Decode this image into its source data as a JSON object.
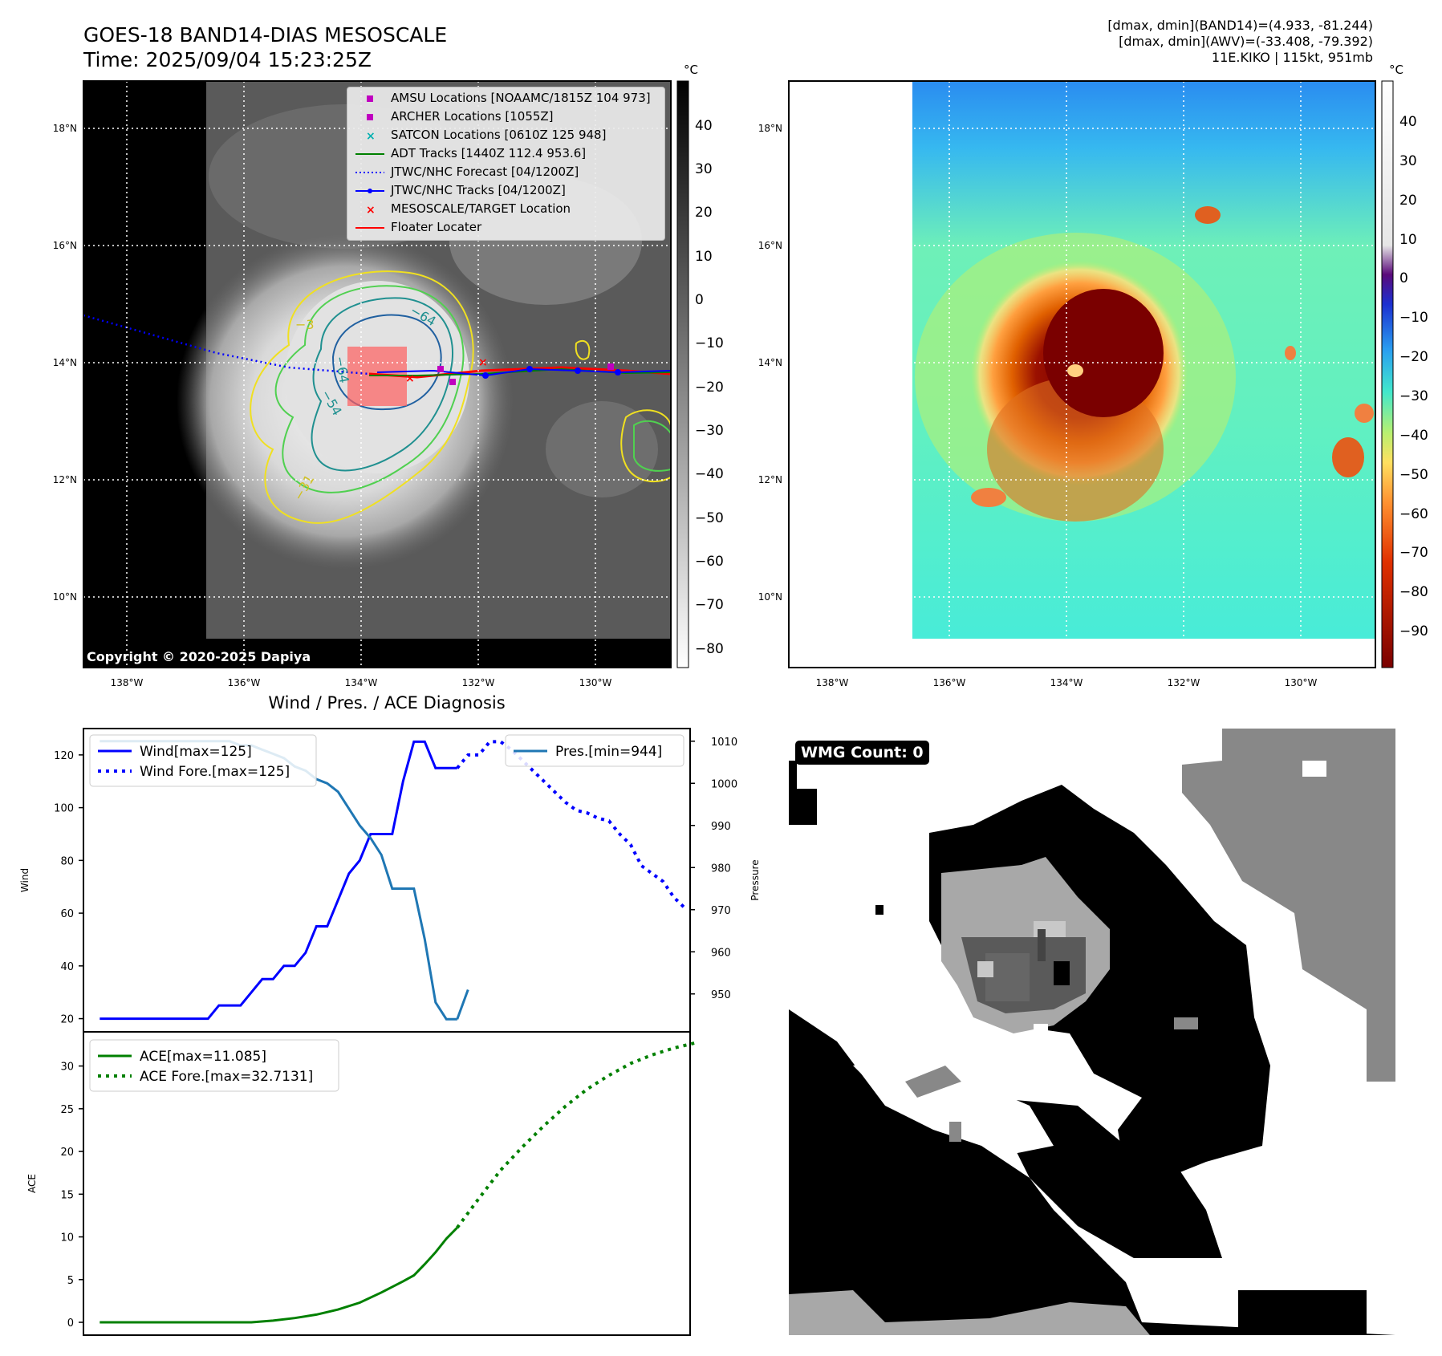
{
  "header": {
    "title_line1": "GOES-18 BAND14-DIAS MESOSCALE",
    "title_line2": "Time: 2025/09/04 15:23:25Z",
    "dmax_band14": "[dmax, dmin](BAND14)=(4.933, -81.244)",
    "dmax_awv": "[dmax, dmin](AWV)=(-33.408, -79.392)",
    "storm_info": "11E.KIKO | 115kt, 951mb"
  },
  "ir_map": {
    "copyright": "Copyright © 2020-2025 Dapiya",
    "lat_labels": [
      "18°N",
      "16°N",
      "14°N",
      "12°N",
      "10°N"
    ],
    "lon_labels": [
      "138°W",
      "136°W",
      "134°W",
      "132°W",
      "130°W"
    ],
    "colorbar_unit": "°C",
    "colorbar_ticks": [
      "40",
      "30",
      "20",
      "10",
      "0",
      "−10",
      "−20",
      "−30",
      "−40",
      "−50",
      "−60",
      "−70",
      "−80"
    ],
    "contour_labels": [
      "−64",
      "−64",
      "−54",
      "−3",
      "−31"
    ],
    "legend": [
      {
        "label": "AMSU Locations [NOAAMC/1815Z 104 973]",
        "marker": "square",
        "color": "#c000c0"
      },
      {
        "label": "ARCHER Locations [1055Z]",
        "marker": "square",
        "color": "#c000c0"
      },
      {
        "label": "SATCON Locations [0610Z 125 948]",
        "marker": "x",
        "color": "#00b0b0"
      },
      {
        "label": "ADT Tracks [1440Z 112.4 953.6]",
        "marker": "line",
        "color": "#008000"
      },
      {
        "label": "JTWC/NHC Forecast [04/1200Z]",
        "marker": "dotted",
        "color": "#0000ff"
      },
      {
        "label": "JTWC/NHC Tracks [04/1200Z]",
        "marker": "line-dot",
        "color": "#0000ff"
      },
      {
        "label": "MESOSCALE/TARGET Location",
        "marker": "x",
        "color": "#ff0000"
      },
      {
        "label": "Floater Locater",
        "marker": "line",
        "color": "#ff0000"
      }
    ]
  },
  "awv_map": {
    "lat_labels": [
      "18°N",
      "16°N",
      "14°N",
      "12°N",
      "10°N"
    ],
    "lon_labels": [
      "138°W",
      "136°W",
      "134°W",
      "132°W",
      "130°W"
    ],
    "colorbar_unit": "°C",
    "colorbar_ticks": [
      "40",
      "30",
      "20",
      "10",
      "0",
      "−10",
      "−20",
      "−30",
      "−40",
      "−50",
      "−60",
      "−70",
      "−80",
      "−90"
    ]
  },
  "wmg": {
    "label": "WMG Count: 0"
  },
  "chart_data": [
    {
      "type": "line",
      "title": "Wind / Pres. / ACE Diagnosis",
      "ylabel": "Wind",
      "ylabel_right": "Pressure",
      "ylim": [
        15,
        130
      ],
      "ylim_right": [
        941,
        1013
      ],
      "yticks": [
        20,
        40,
        60,
        80,
        100,
        120
      ],
      "yticks_right": [
        950,
        960,
        970,
        980,
        990,
        1000,
        1010
      ],
      "legend_left": [
        "Wind[max=125]",
        "Wind Fore.[max=125]"
      ],
      "legend_right": [
        "Pres.[min=944]"
      ],
      "colors": {
        "wind": "#0000ff",
        "pres": "#1f77b4"
      },
      "wind": {
        "x": [
          0,
          1,
          2,
          3,
          4,
          5,
          6,
          7,
          8,
          9,
          10,
          11,
          12,
          13,
          14,
          15,
          16,
          17,
          18,
          19,
          20,
          21,
          22,
          23,
          24,
          25,
          26,
          27,
          28,
          29,
          30,
          31,
          32,
          33
        ],
        "values": [
          20,
          20,
          20,
          20,
          20,
          20,
          20,
          20,
          20,
          20,
          20,
          25,
          25,
          25,
          30,
          35,
          35,
          40,
          40,
          45,
          55,
          55,
          65,
          75,
          80,
          90,
          90,
          90,
          110,
          125,
          125,
          115,
          115,
          115
        ]
      },
      "wind_forecast": {
        "x": [
          33,
          34,
          35,
          36,
          37,
          38,
          39,
          40,
          41,
          42,
          43,
          44,
          45,
          46,
          47,
          48,
          49,
          50,
          51,
          52,
          53,
          54
        ],
        "values": [
          115,
          120,
          120,
          125,
          125,
          122,
          118,
          114,
          110,
          106,
          102,
          99,
          98,
          96,
          95,
          90,
          86,
          78,
          75,
          72,
          66,
          62
        ]
      },
      "pressure": {
        "x": [
          0,
          1,
          2,
          3,
          4,
          5,
          6,
          7,
          8,
          9,
          10,
          11,
          12,
          13,
          14,
          15,
          16,
          17,
          18,
          19,
          20,
          21,
          22,
          23,
          24,
          25,
          26,
          27,
          28,
          29,
          30,
          31,
          32,
          33
        ],
        "values": [
          1010,
          1010,
          1010,
          1010,
          1010,
          1010,
          1010,
          1010,
          1010,
          1010,
          1010,
          1010,
          1010,
          1009,
          1009,
          1008,
          1007,
          1006,
          1004,
          1003,
          1001,
          1000,
          998,
          994,
          990,
          987,
          983,
          975,
          975,
          975,
          963,
          948,
          944,
          944
        ]
      },
      "pressure_last": 951
    },
    {
      "type": "line",
      "ylabel": "ACE",
      "ylim": [
        -1.5,
        34
      ],
      "yticks": [
        0,
        5,
        10,
        15,
        20,
        25,
        30
      ],
      "legend": [
        "ACE[max=11.085]",
        "ACE Fore.[max=32.7131]"
      ],
      "color": "#008000",
      "ace": {
        "x": [
          0,
          2,
          4,
          6,
          8,
          10,
          12,
          14,
          16,
          18,
          20,
          22,
          24,
          26,
          28,
          29,
          30,
          31,
          32,
          33
        ],
        "values": [
          0,
          0,
          0,
          0,
          0,
          0,
          0,
          0,
          0.2,
          0.5,
          0.9,
          1.5,
          2.3,
          3.5,
          4.8,
          5.5,
          6.8,
          8.2,
          9.8,
          11.085
        ]
      },
      "ace_forecast": {
        "x": [
          33,
          35,
          37,
          39,
          41,
          43,
          45,
          47,
          49,
          51,
          53,
          55
        ],
        "values": [
          11.085,
          14.5,
          17.8,
          20.5,
          23.0,
          25.3,
          27.3,
          28.9,
          30.3,
          31.3,
          32.1,
          32.7131
        ]
      }
    }
  ]
}
